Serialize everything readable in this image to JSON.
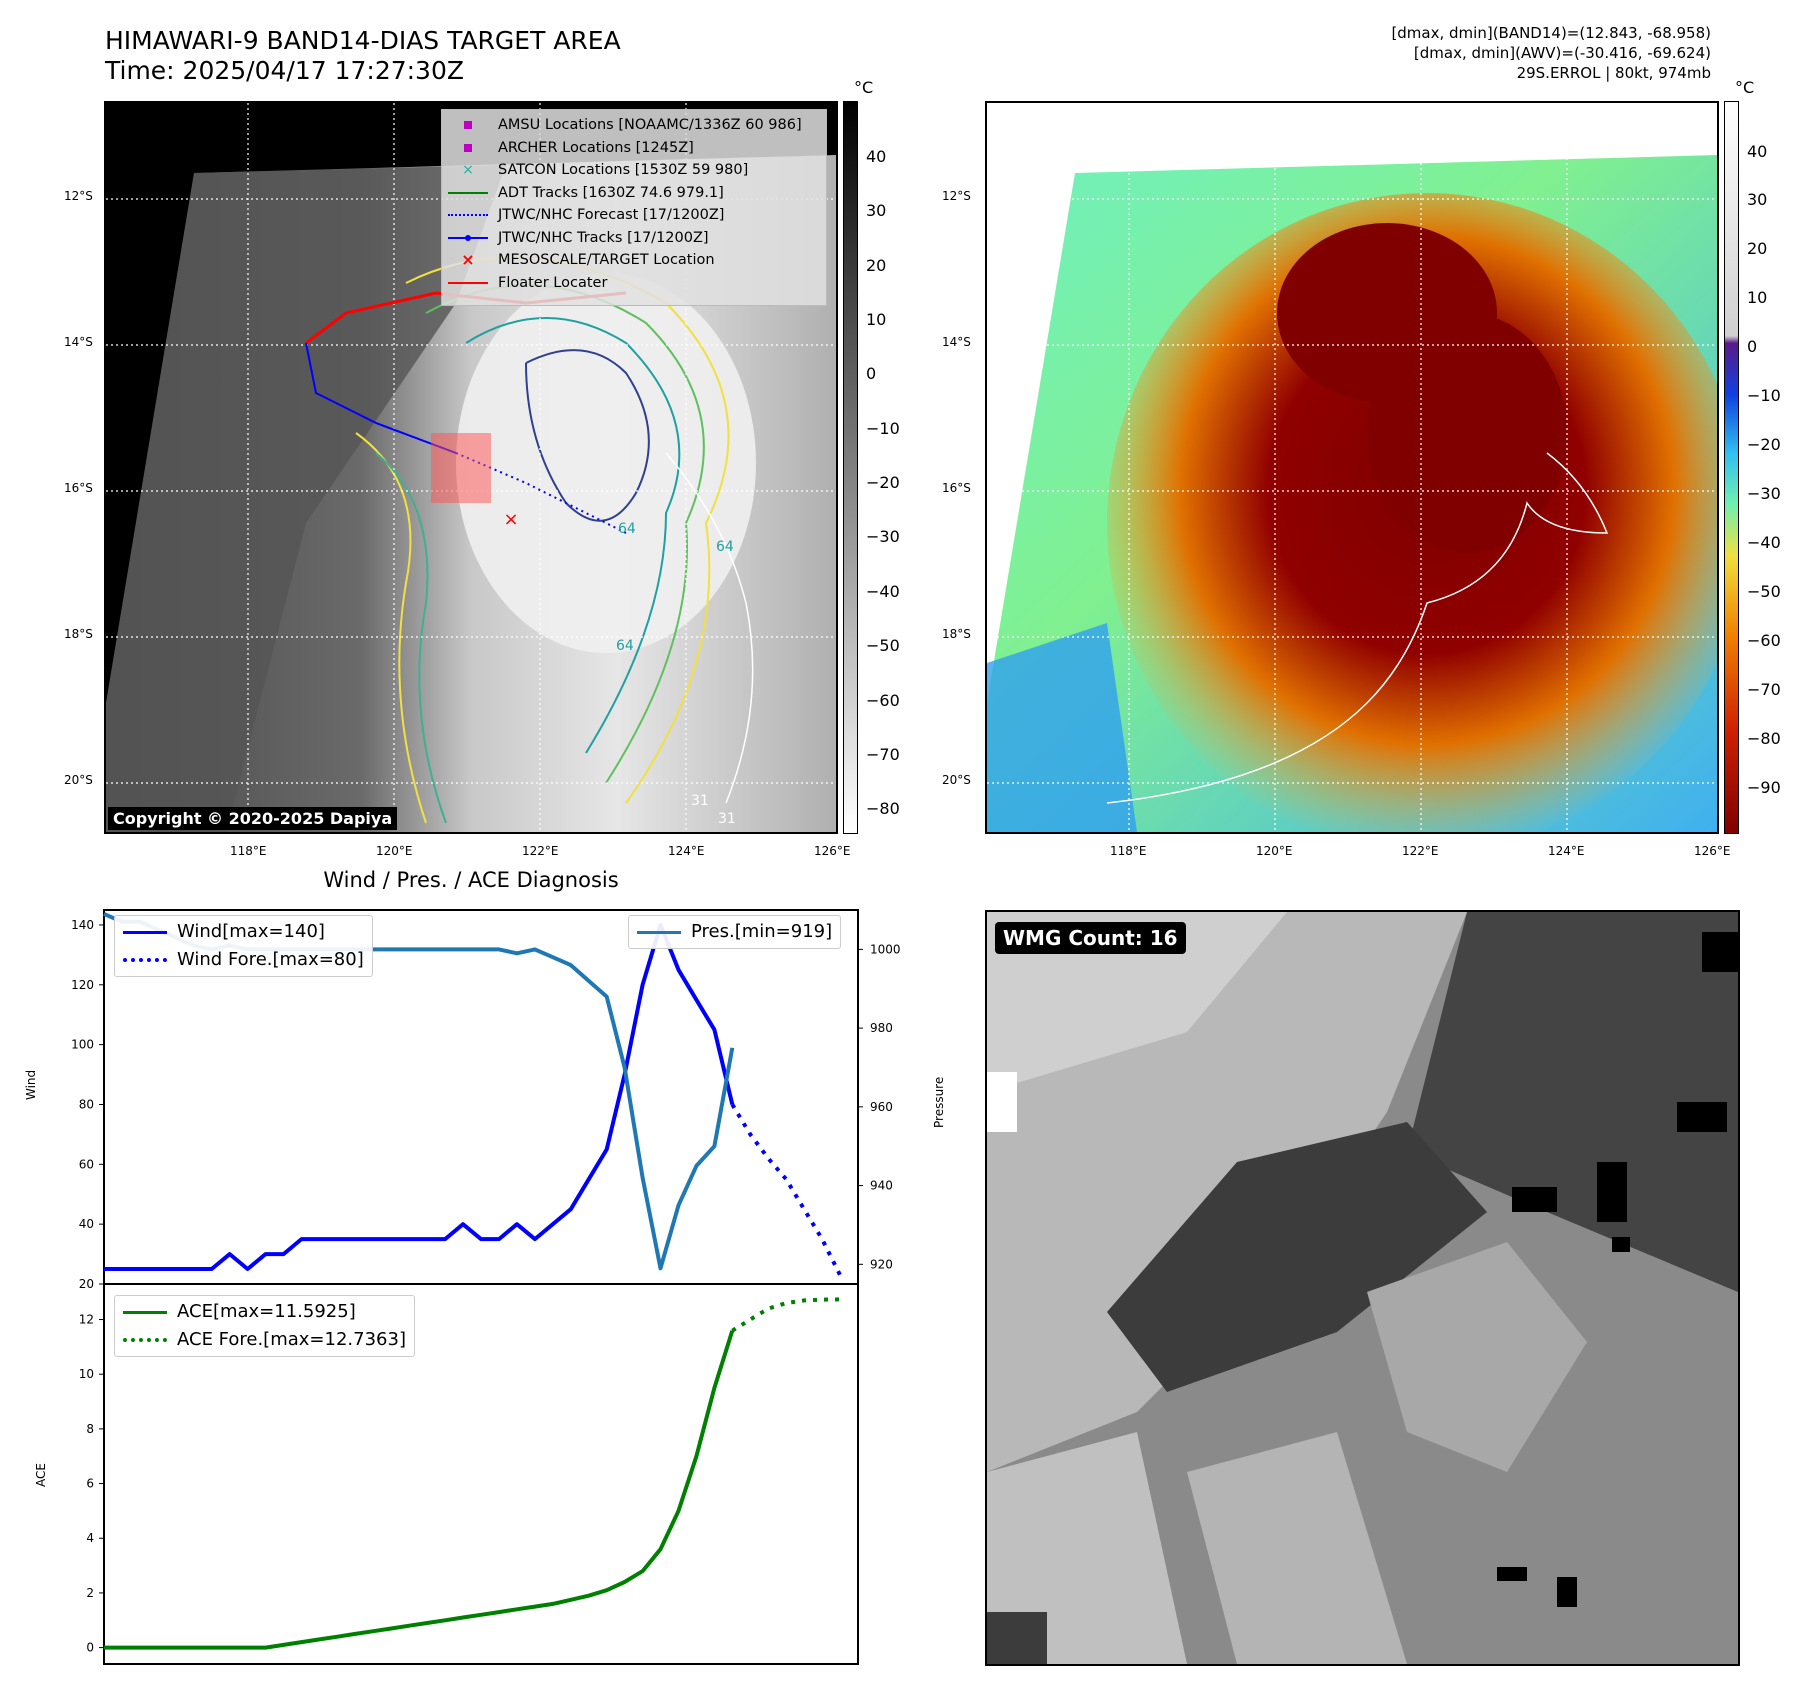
{
  "header": {
    "title_line1": "HIMAWARI-9 BAND14-DIAS TARGET AREA",
    "title_line2": "Time: 2025/04/17 17:27:30Z",
    "meta_line1": "[dmax, dmin](BAND14)=(12.843, -68.958)",
    "meta_line2": "[dmax, dmin](AWV)=(-30.416, -69.624)",
    "meta_line3": "29S.ERROL | 80kt, 974mb"
  },
  "map": {
    "lat_labels": [
      "12°S",
      "14°S",
      "16°S",
      "18°S",
      "20°S"
    ],
    "lon_labels": [
      "118°E",
      "120°E",
      "122°E",
      "124°E",
      "126°E"
    ],
    "colorbar_unit": "°C",
    "gray_colorbar_ticks": [
      "40",
      "30",
      "20",
      "10",
      "0",
      "−10",
      "−20",
      "−30",
      "−40",
      "−50",
      "−60",
      "−70",
      "−80"
    ],
    "color_colorbar_ticks": [
      "40",
      "30",
      "20",
      "10",
      "0",
      "−10",
      "−20",
      "−30",
      "−40",
      "−50",
      "−60",
      "−70",
      "−80",
      "−90"
    ],
    "contour_labels": [
      "64",
      "64",
      "64",
      "31",
      "31"
    ],
    "copyright": "Copyright © 2020-2025 Dapiya",
    "legend": [
      {
        "label": "AMSU Locations [NOAAMC/1336Z 60 986]",
        "symbol": "square",
        "color": "#c000c0"
      },
      {
        "label": "ARCHER Locations [1245Z]",
        "symbol": "square",
        "color": "#c000c0"
      },
      {
        "label": "SATCON Locations [1530Z 59 980]",
        "symbol": "x",
        "color": "#20b0a0"
      },
      {
        "label": "ADT Tracks [1630Z 74.6 979.1]",
        "symbol": "line",
        "color": "#008000"
      },
      {
        "label": "JTWC/NHC Forecast [17/1200Z]",
        "symbol": "dotted",
        "color": "#0000ff"
      },
      {
        "label": "JTWC/NHC Tracks [17/1200Z]",
        "symbol": "line-dot",
        "color": "#0000ff"
      },
      {
        "label": "MESOSCALE/TARGET Location",
        "symbol": "x",
        "color": "#ff0000"
      },
      {
        "label": "Floater Locater",
        "symbol": "line",
        "color": "#ff0000"
      }
    ]
  },
  "wmg": {
    "label": "WMG Count: 16"
  },
  "chart_data": [
    {
      "type": "line",
      "title": "Wind / Pres. / ACE Diagnosis",
      "ylabel": "Wind",
      "ylabel_right": "Pressure",
      "ylim": [
        20,
        145
      ],
      "ylim_right": [
        915,
        1010
      ],
      "yticks": [
        20,
        40,
        60,
        80,
        100,
        120,
        140
      ],
      "yticks_right": [
        920,
        940,
        960,
        980,
        1000
      ],
      "x": [
        0,
        1,
        2,
        3,
        4,
        5,
        6,
        7,
        8,
        9,
        10,
        11,
        12,
        13,
        14,
        15,
        16,
        17,
        18,
        19,
        20,
        21,
        22,
        23,
        24,
        25,
        26,
        27,
        28,
        29,
        30,
        31,
        32,
        33,
        34,
        35
      ],
      "series": [
        {
          "name": "Wind[max=140]",
          "axis": "left",
          "style": "solid",
          "color": "#0000ff",
          "x": [
            0,
            1,
            2,
            3,
            4,
            5,
            6,
            7,
            8,
            9,
            10,
            11,
            12,
            13,
            14,
            15,
            16,
            17,
            18,
            19,
            20,
            21,
            22,
            23,
            24,
            25,
            26,
            27,
            28,
            29,
            30,
            31,
            32,
            33,
            34,
            35
          ],
          "values": [
            25,
            25,
            25,
            25,
            25,
            25,
            25,
            30,
            25,
            30,
            30,
            35,
            35,
            35,
            35,
            35,
            35,
            35,
            35,
            35,
            40,
            35,
            35,
            40,
            35,
            40,
            45,
            55,
            65,
            90,
            120,
            140,
            125,
            115,
            105,
            80
          ]
        },
        {
          "name": "Wind Fore.[max=80]",
          "axis": "left",
          "style": "dotted",
          "color": "#0000ff",
          "x": [
            35,
            36,
            37,
            38,
            39,
            40,
            41
          ],
          "values": [
            80,
            70,
            62,
            55,
            45,
            35,
            23
          ]
        },
        {
          "name": "Pres.[min=919]",
          "axis": "right",
          "style": "solid",
          "color": "#1f77b4",
          "x": [
            0,
            1,
            2,
            3,
            4,
            5,
            6,
            7,
            8,
            9,
            10,
            11,
            12,
            13,
            14,
            15,
            16,
            17,
            18,
            19,
            20,
            21,
            22,
            23,
            24,
            25,
            26,
            27,
            28,
            29,
            30,
            31,
            32,
            33,
            34,
            35
          ],
          "values": [
            1009,
            1007,
            1007,
            1005,
            1003,
            1001,
            1000,
            1001,
            1000,
            1000,
            1000,
            1000,
            1000,
            1000,
            1000,
            1000,
            1000,
            1000,
            1000,
            1000,
            1000,
            1000,
            1000,
            999,
            1000,
            998,
            996,
            992,
            988,
            970,
            942,
            919,
            935,
            945,
            950,
            975
          ]
        }
      ]
    },
    {
      "type": "line",
      "ylabel": "ACE",
      "ylim": [
        -0.6,
        13.3
      ],
      "yticks": [
        0,
        2,
        4,
        6,
        8,
        10,
        12
      ],
      "series": [
        {
          "name": "ACE[max=11.5925]",
          "style": "solid",
          "color": "#008000",
          "x": [
            0,
            1,
            2,
            3,
            4,
            5,
            6,
            7,
            8,
            9,
            10,
            11,
            12,
            13,
            14,
            15,
            16,
            17,
            18,
            19,
            20,
            21,
            22,
            23,
            24,
            25,
            26,
            27,
            28,
            29,
            30,
            31,
            32,
            33,
            34,
            35
          ],
          "values": [
            0,
            0,
            0,
            0,
            0,
            0,
            0,
            0,
            0,
            0,
            0.1,
            0.2,
            0.3,
            0.4,
            0.5,
            0.6,
            0.7,
            0.8,
            0.9,
            1.0,
            1.1,
            1.2,
            1.3,
            1.4,
            1.5,
            1.6,
            1.75,
            1.9,
            2.1,
            2.4,
            2.8,
            3.6,
            5.0,
            7.0,
            9.5,
            11.5925
          ]
        },
        {
          "name": "ACE Fore.[max=12.7363]",
          "style": "dotted",
          "color": "#008000",
          "x": [
            35,
            36,
            37,
            38,
            39,
            40,
            41
          ],
          "values": [
            11.5925,
            12.0,
            12.4,
            12.6,
            12.7,
            12.73,
            12.7363
          ]
        }
      ]
    }
  ]
}
